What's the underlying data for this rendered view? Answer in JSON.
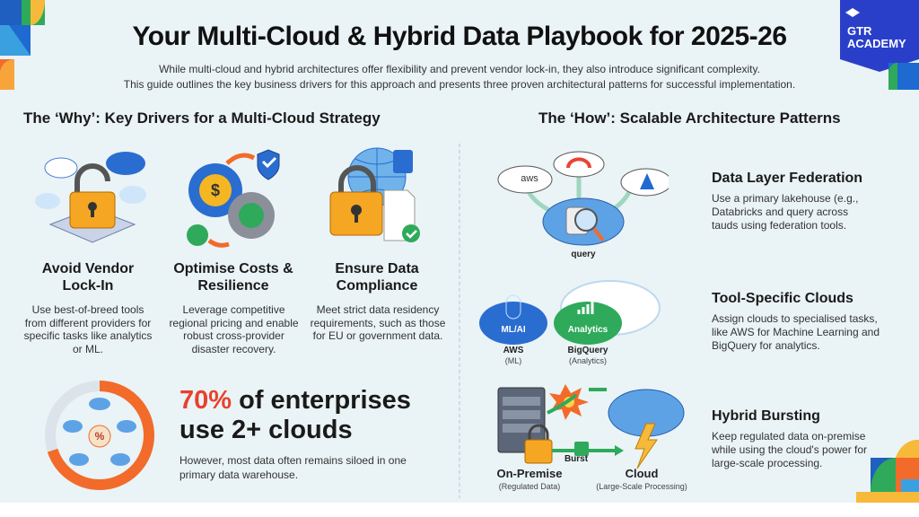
{
  "header": {
    "title": "Your Multi-Cloud & Hybrid Data Playbook for 2025-26",
    "subtitle_lines": [
      "While multi-cloud and hybrid architectures offer flexibility and prevent vendor lock-in, they also introduce significant complexity.",
      "This guide outlines the key business drivers for this approach and presents three proven architectural patterns for successful implementation."
    ],
    "logo_text": "GTR ACADEMY"
  },
  "why": {
    "heading": "The ‘Why’: Key Drivers for a Multi-Cloud Strategy",
    "drivers": [
      {
        "title": "Avoid Vendor Lock-In",
        "body": "Use best-of-breed tools from different providers for specific tasks like analytics or ML.",
        "icon": "padlock-clouds-icon"
      },
      {
        "title": "Optimise Costs & Resilience",
        "body": "Leverage competitive regional pricing and enable robust cross-provider disaster recovery.",
        "icon": "gears-shield-icon"
      },
      {
        "title": "Ensure Data Compliance",
        "body": "Meet strict data residency requirements, such as those for EU or government data.",
        "icon": "globe-lock-document-icon"
      }
    ],
    "stat": {
      "highlight": "70%",
      "line1_rest": " of enterprises",
      "line2": "use 2+ clouds",
      "note": "However, most data often remains siloed in one primary data warehouse.",
      "percent": 70,
      "ring_color": "#f26b2a",
      "center_icon": "percent-icon"
    }
  },
  "how": {
    "heading": "The ‘How’: Scalable Architecture Patterns",
    "patterns": [
      {
        "title": "Data Layer Federation",
        "body": "Use a primary lakehouse (e.g., Databricks and query across tauds using federation tools.",
        "labels": {
          "aws": "aws",
          "center": "query"
        }
      },
      {
        "title": "Tool-Specific Clouds",
        "body": "Assign clouds to specialised tasks, like AWS for Machine Learning and BigQuery for analytics.",
        "labels": {
          "ml_cloud": "ML/AI",
          "analytics_cloud": "Analytics",
          "aws": "AWS",
          "aws_sub": "(ML)",
          "bq": "BigQuery",
          "bq_sub": "(Analytics)"
        }
      },
      {
        "title": "Hybrid Bursting",
        "body": "Keep regulated data on-premise while using the cloud's power for large-scale processing.",
        "labels": {
          "burst": "Burst",
          "onprem": "On-Premise",
          "onprem_sub": "(Regulated Data)",
          "cloud": "Cloud",
          "cloud_sub": "(Large-Scale Processing)"
        }
      }
    ]
  },
  "colors": {
    "accent_red": "#e8412c",
    "logo_blue": "#2a3fc9",
    "text": "#1a1a1a"
  }
}
